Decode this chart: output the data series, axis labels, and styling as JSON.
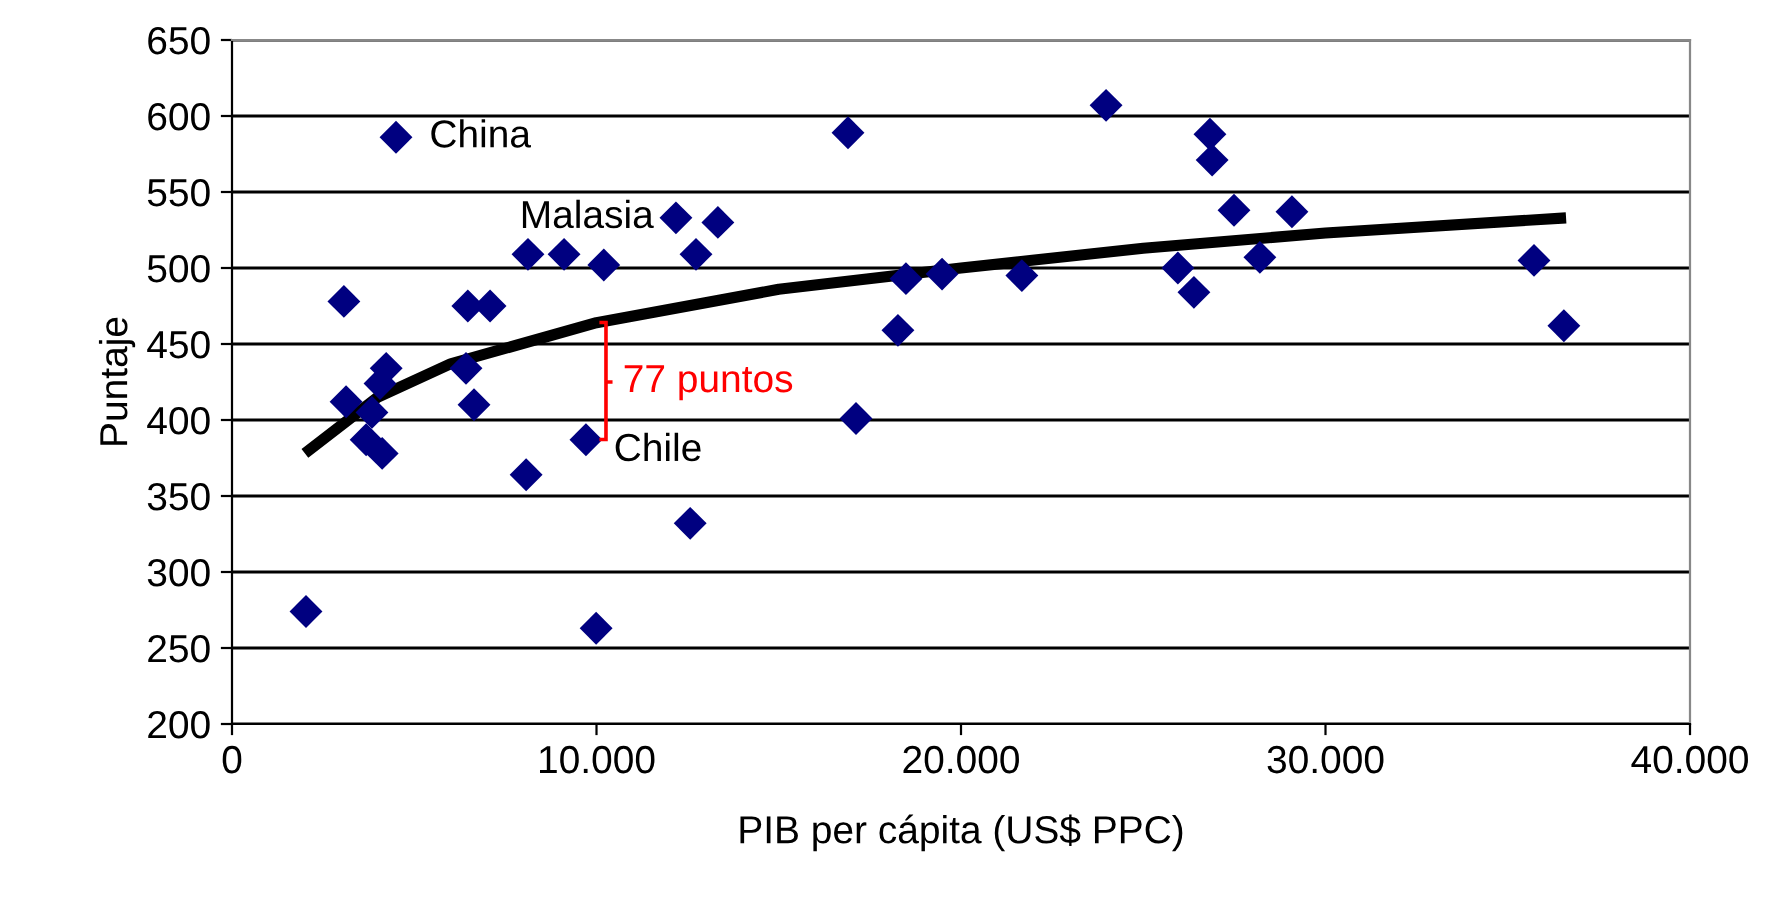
{
  "chart_data": {
    "type": "scatter",
    "xlabel": "PIB per cápita (US$ PPC)",
    "ylabel": "Puntaje",
    "series": [
      {
        "color": "#000080",
        "marker": "diamond",
        "x": [
          4500,
          12180,
          13330,
          8120,
          9110,
          10200,
          12730,
          3070,
          6470,
          7080,
          4230,
          4060,
          6420,
          3130,
          3840,
          6640,
          3680,
          4120,
          8070,
          9710,
          12570,
          2030,
          9990,
          16900,
          23980,
          26830,
          26890,
          27490,
          18490,
          19480,
          21670,
          25950,
          26390,
          18270,
          17120,
          29080,
          28200,
          35720,
          36540
        ],
        "values": [
          586,
          533,
          530,
          509,
          509,
          502,
          509,
          478,
          475,
          475,
          434,
          424,
          434,
          412,
          405,
          410,
          387,
          378,
          364,
          387,
          332,
          274,
          263,
          589,
          607,
          588,
          571,
          538,
          493,
          496,
          495,
          500,
          484,
          459,
          401,
          537,
          507,
          505,
          462
        ]
      },
      {
        "type": "line",
        "color": "#000000",
        "marker": "none",
        "line_style": "solid",
        "x": [
          2000,
          4000,
          6000,
          10000,
          15000,
          20000,
          25000,
          30000,
          36600
        ],
        "values": [
          378,
          415,
          437,
          464,
          486,
          500,
          513,
          523,
          533
        ]
      }
    ],
    "annotations": [
      {
        "text": "China",
        "x": 4500,
        "y": 586
      },
      {
        "text": "Malasia",
        "x": 12180,
        "y": 533
      },
      {
        "text": "Chile",
        "x": 9710,
        "y": 387
      },
      "77 puntos"
    ],
    "xlim": [
      0,
      40000
    ],
    "ylim": [
      200,
      650
    ],
    "xticks": [
      0,
      {
        "value": 10000,
        "label": "10.000"
      },
      {
        "value": 20000,
        "label": "20.000"
      },
      {
        "value": 30000,
        "label": "30.000"
      },
      {
        "value": 40000,
        "label": "40.000"
      }
    ],
    "yticks": [
      200,
      250,
      300,
      350,
      400,
      450,
      500,
      550,
      600,
      650
    ],
    "grid": "y",
    "legend": false
  }
}
